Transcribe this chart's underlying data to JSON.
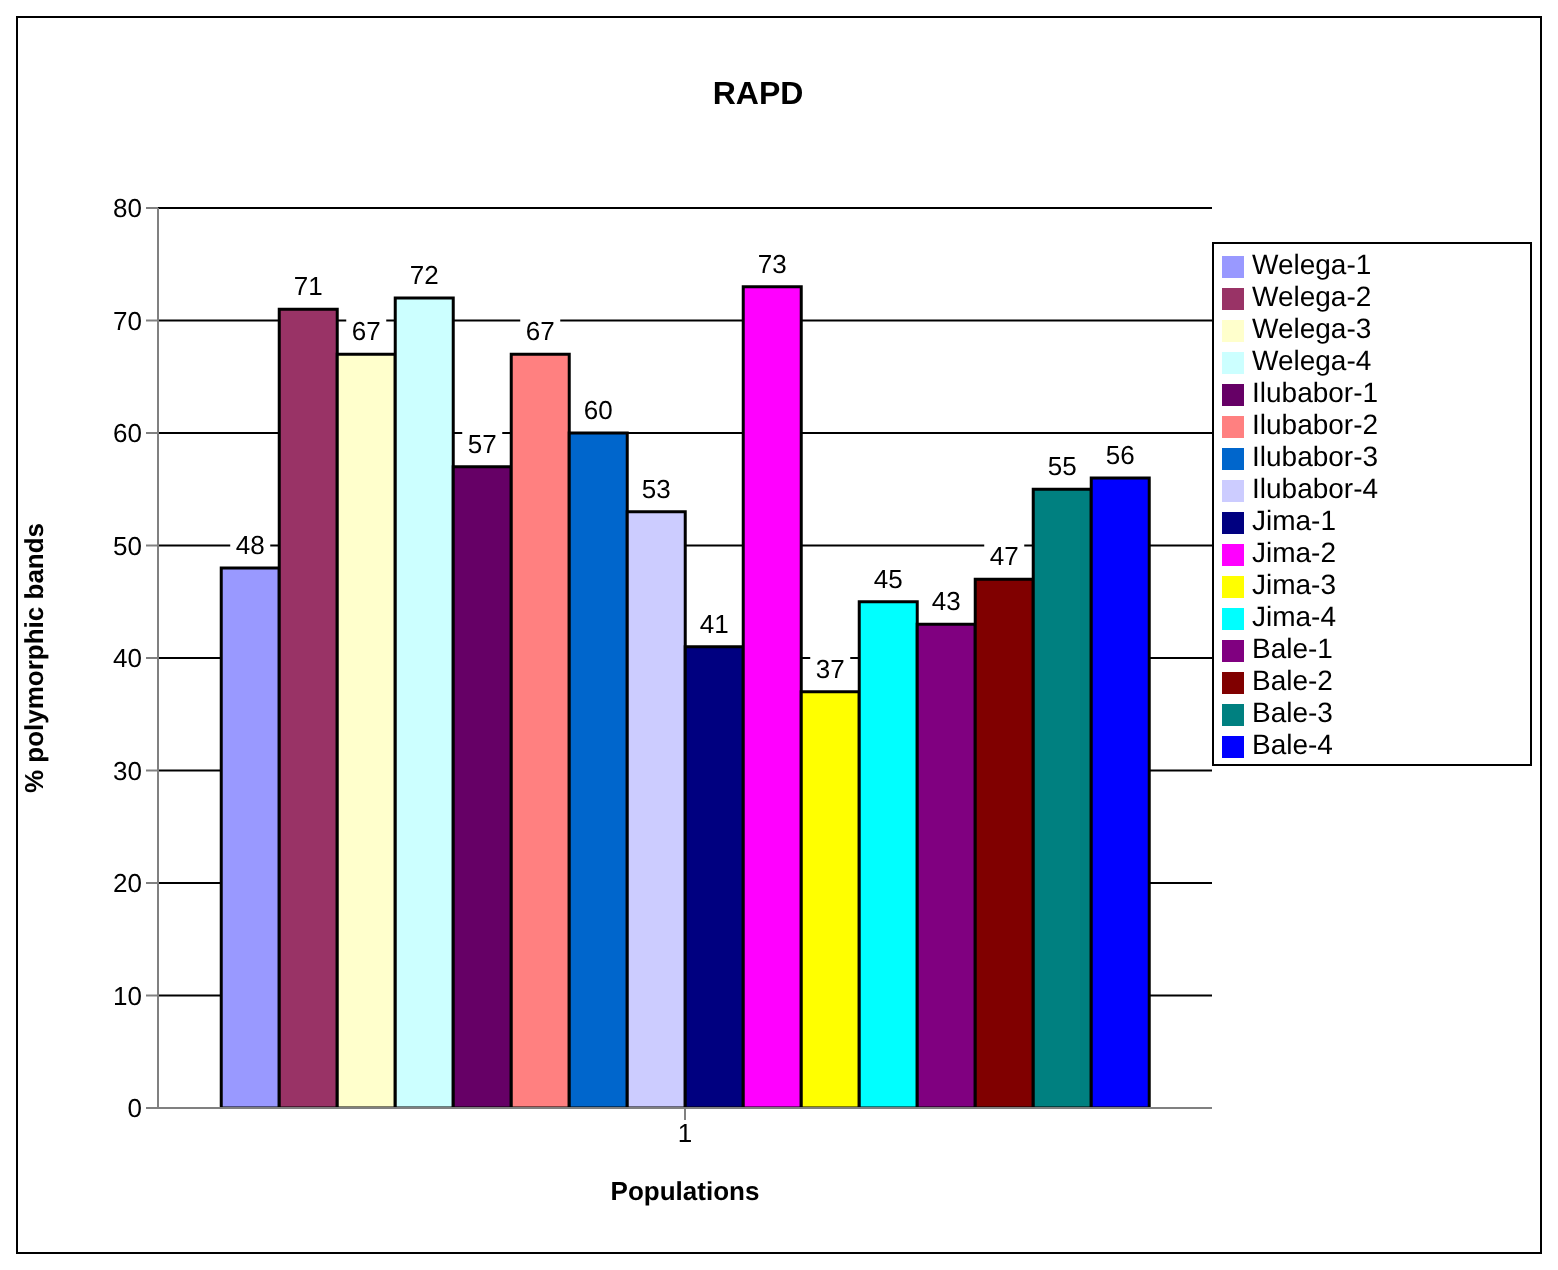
{
  "chart_data": {
    "type": "bar",
    "title": "RAPD",
    "xlabel": "Populations",
    "ylabel": "% polymorphic bands",
    "categories": [
      "1"
    ],
    "series": [
      {
        "name": "Welega-1",
        "color": "#9999ff",
        "values": [
          48
        ]
      },
      {
        "name": "Welega-2",
        "color": "#993366",
        "values": [
          71
        ]
      },
      {
        "name": "Welega-3",
        "color": "#ffffcc",
        "values": [
          67
        ]
      },
      {
        "name": "Welega-4",
        "color": "#ccffff",
        "values": [
          72
        ]
      },
      {
        "name": "Ilubabor-1",
        "color": "#660066",
        "values": [
          57
        ]
      },
      {
        "name": "Ilubabor-2",
        "color": "#ff8080",
        "values": [
          67
        ]
      },
      {
        "name": "Ilubabor-3",
        "color": "#0066cc",
        "values": [
          60
        ]
      },
      {
        "name": "Ilubabor-4",
        "color": "#ccccff",
        "values": [
          53
        ]
      },
      {
        "name": "Jima-1",
        "color": "#000080",
        "values": [
          41
        ]
      },
      {
        "name": "Jima-2",
        "color": "#ff00ff",
        "values": [
          73
        ]
      },
      {
        "name": "Jima-3",
        "color": "#ffff00",
        "values": [
          37
        ]
      },
      {
        "name": "Jima-4",
        "color": "#00ffff",
        "values": [
          45
        ]
      },
      {
        "name": "Bale-1",
        "color": "#800080",
        "values": [
          43
        ]
      },
      {
        "name": "Bale-2",
        "color": "#800000",
        "values": [
          47
        ]
      },
      {
        "name": "Bale-3",
        "color": "#008080",
        "values": [
          55
        ]
      },
      {
        "name": "Bale-4",
        "color": "#0000ff",
        "values": [
          56
        ]
      }
    ],
    "ylim": [
      0,
      80
    ],
    "yticks": [
      0,
      10,
      20,
      30,
      40,
      50,
      60,
      70,
      80
    ],
    "grid": "y",
    "legend": "right",
    "data_labels": true
  }
}
